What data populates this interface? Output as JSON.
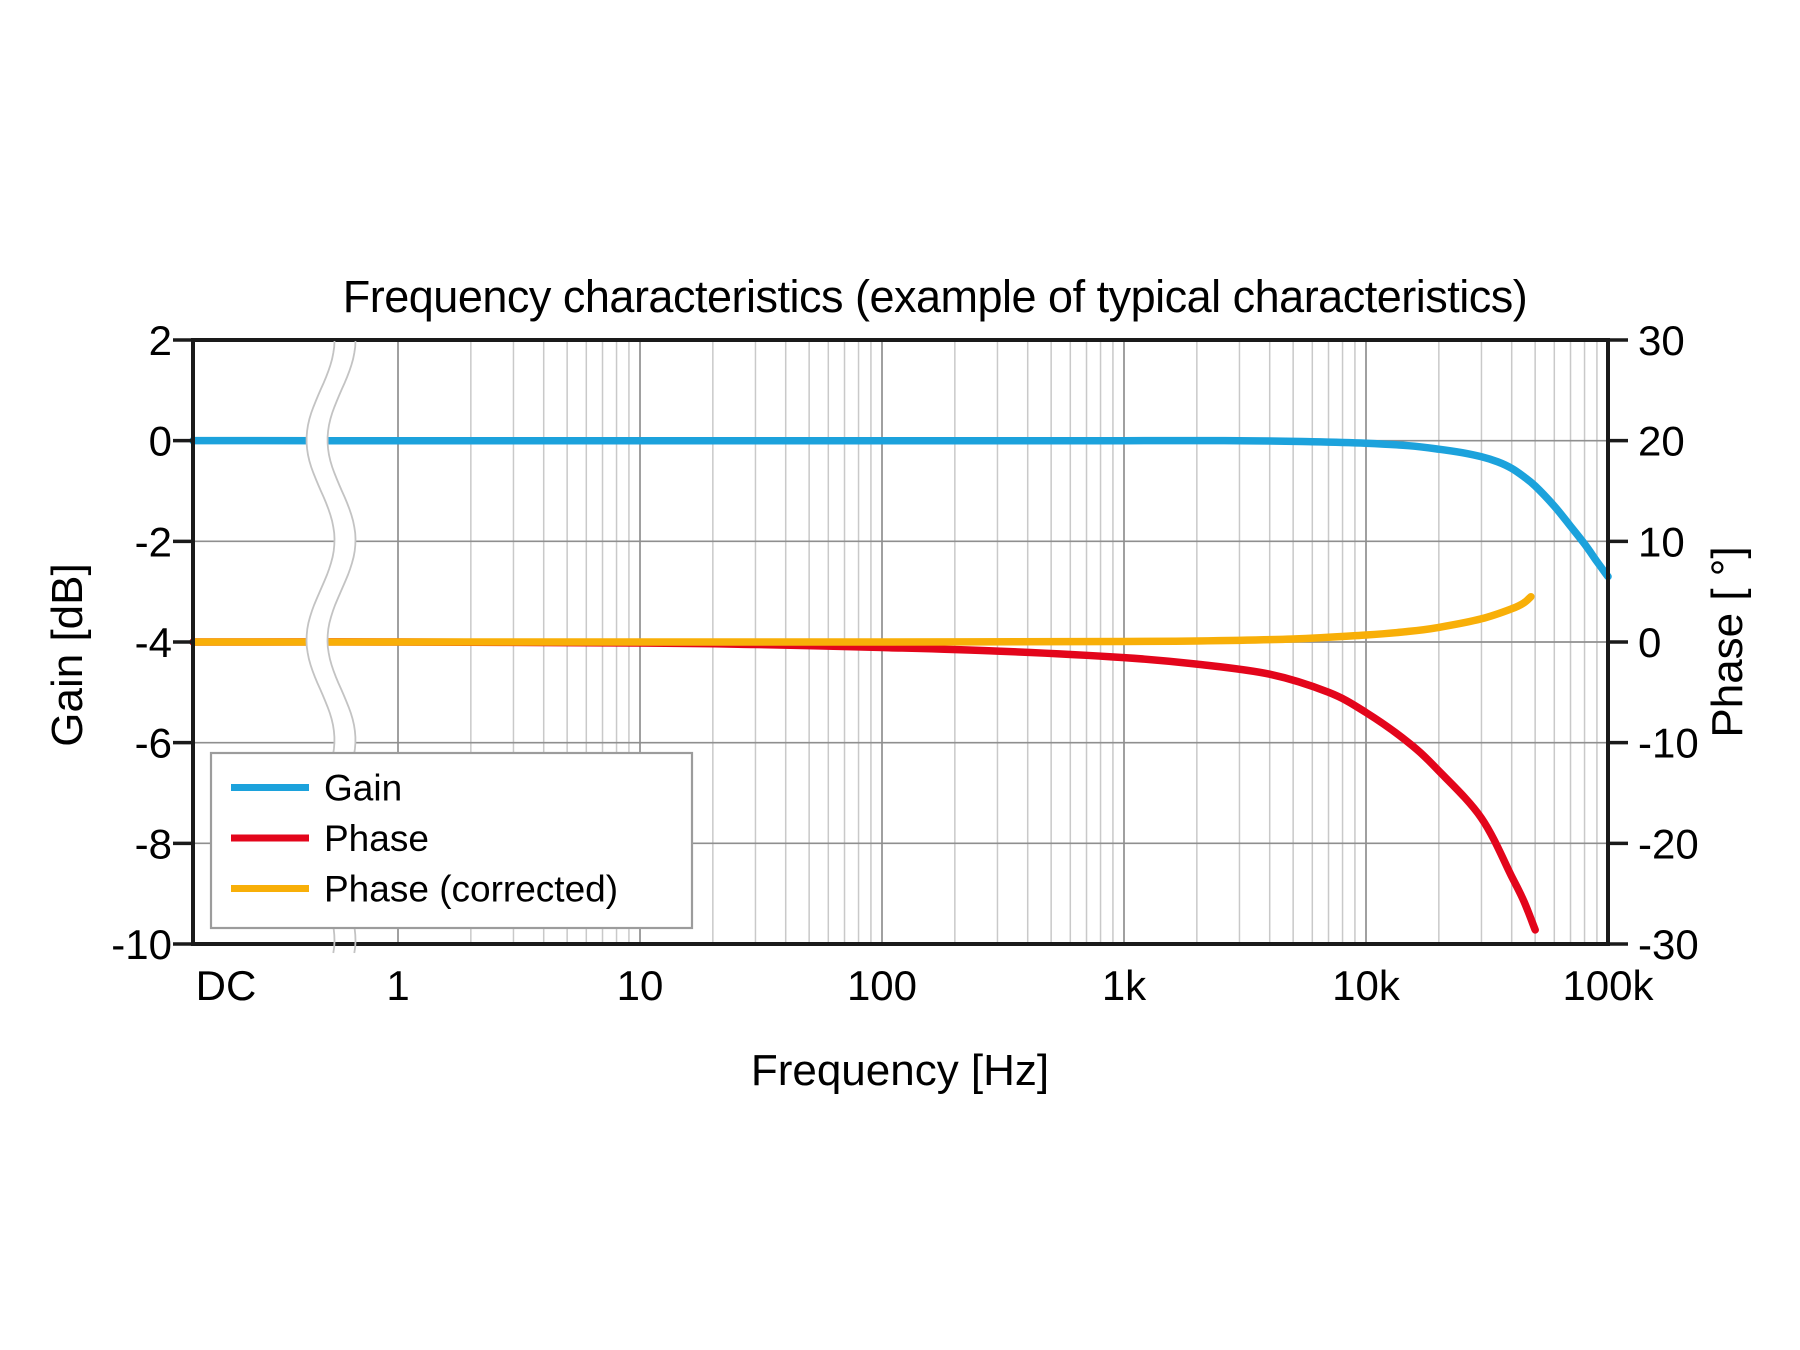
{
  "chart_data": {
    "type": "line",
    "title": "Frequency characteristics (example of typical characteristics)",
    "x_axis": {
      "label": "Frequency [Hz]",
      "scale": "log",
      "tick_labels": [
        "DC",
        "1",
        "10",
        "100",
        "1k",
        "10k",
        "100k"
      ],
      "tick_freqs_hz": [
        "DC",
        1,
        10,
        100,
        1000,
        10000,
        100000
      ],
      "axis_break": {
        "between": [
          "DC",
          "1"
        ],
        "style": "wavy-band"
      }
    },
    "y_axis_left": {
      "label": "Gain [dB]",
      "range": [
        -10,
        2
      ],
      "ticks": [
        2,
        0,
        -2,
        -4,
        -6,
        -8,
        -10
      ],
      "gridline_step_db": 2
    },
    "y_axis_right": {
      "label": "Phase [ °]",
      "range": [
        -30,
        30
      ],
      "ticks": [
        30,
        20,
        10,
        0,
        -10,
        -20,
        -30
      ],
      "gridline_step_deg": 10
    },
    "series": [
      {
        "name": "Gain",
        "axis": "left",
        "unit": "dB",
        "color": "#1CA2DC",
        "points": [
          [
            "DC",
            0
          ],
          [
            1,
            0
          ],
          [
            10,
            0
          ],
          [
            100,
            0
          ],
          [
            1000,
            0
          ],
          [
            3000,
            0
          ],
          [
            6000,
            -0.02
          ],
          [
            10000,
            -0.05
          ],
          [
            15000,
            -0.1
          ],
          [
            20000,
            -0.17
          ],
          [
            25000,
            -0.24
          ],
          [
            30000,
            -0.32
          ],
          [
            35000,
            -0.42
          ],
          [
            40000,
            -0.55
          ],
          [
            45000,
            -0.72
          ],
          [
            50000,
            -0.9
          ],
          [
            60000,
            -1.3
          ],
          [
            70000,
            -1.7
          ],
          [
            80000,
            -2.05
          ],
          [
            90000,
            -2.4
          ],
          [
            100000,
            -2.7
          ]
        ]
      },
      {
        "name": "Phase",
        "axis": "right",
        "unit": "deg",
        "color": "#E3051B",
        "points": [
          [
            "DC",
            0
          ],
          [
            1,
            0
          ],
          [
            10,
            -0.1
          ],
          [
            30,
            -0.25
          ],
          [
            100,
            -0.55
          ],
          [
            300,
            -0.9
          ],
          [
            1000,
            -1.55
          ],
          [
            2000,
            -2.2
          ],
          [
            4000,
            -3.2
          ],
          [
            7000,
            -5
          ],
          [
            10000,
            -7
          ],
          [
            15000,
            -10
          ],
          [
            20000,
            -12.8
          ],
          [
            30000,
            -17.5
          ],
          [
            40000,
            -23.3
          ],
          [
            45000,
            -25.8
          ],
          [
            50000,
            -28.6
          ]
        ]
      },
      {
        "name": "Phase (corrected)",
        "axis": "right",
        "unit": "deg",
        "color": "#F8AF08",
        "points": [
          [
            "DC",
            0
          ],
          [
            1,
            0
          ],
          [
            10,
            0
          ],
          [
            100,
            0
          ],
          [
            1000,
            0.05
          ],
          [
            2000,
            0.1
          ],
          [
            5000,
            0.3
          ],
          [
            10000,
            0.7
          ],
          [
            15000,
            1.05
          ],
          [
            20000,
            1.45
          ],
          [
            30000,
            2.3
          ],
          [
            40000,
            3.3
          ],
          [
            45000,
            3.9
          ],
          [
            48000,
            4.5
          ]
        ]
      }
    ],
    "legend": {
      "position": "bottom-left",
      "entries": [
        "Gain",
        "Phase",
        "Phase (corrected)"
      ]
    },
    "grid": {
      "major_on": true,
      "minor_on": true
    },
    "colors": {
      "major_grid": "#8f8f8f",
      "minor_grid": "#c9c9c9",
      "frame": "#1a1a1a",
      "break_wave": "#c3c3c3",
      "legend_border": "#9c9c9c",
      "background": "#ffffff",
      "text": "#000000"
    }
  }
}
